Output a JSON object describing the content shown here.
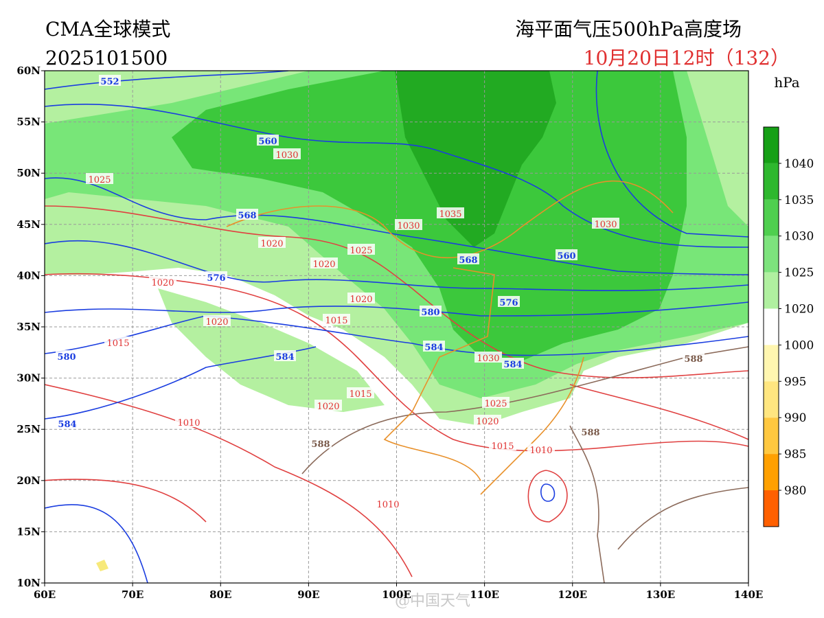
{
  "header": {
    "model": "CMA全球模式",
    "init_time": "2025101500",
    "title": "海平面气压500hPa高度场",
    "valid_time": "10月20日12时（132）"
  },
  "axes": {
    "lat_labels": [
      "60N",
      "55N",
      "50N",
      "45N",
      "40N",
      "35N",
      "30N",
      "25N",
      "20N",
      "15N",
      "10N"
    ],
    "lon_labels": [
      "60E",
      "70E",
      "80E",
      "90E",
      "100E",
      "110E",
      "120E",
      "130E",
      "140E"
    ]
  },
  "colorbar": {
    "unit": "hPa",
    "labels": [
      "1040",
      "1035",
      "1030",
      "1025",
      "1020",
      "1000",
      "995",
      "990",
      "985",
      "980"
    ]
  },
  "height_labels": [
    "552",
    "560",
    "568",
    "576",
    "580",
    "584",
    "584",
    "560",
    "568",
    "576",
    "580",
    "584",
    "584",
    "588",
    "588",
    "588"
  ],
  "pressure_labels": [
    "1030",
    "1025",
    "1035",
    "1030",
    "1030",
    "1020",
    "1025",
    "1020",
    "1020",
    "1020",
    "1015",
    "1020",
    "1015",
    "1030",
    "1025",
    "1015",
    "1020",
    "1020",
    "1010",
    "1015",
    "1010",
    "1010"
  ],
  "watermark": "@中国天气"
}
